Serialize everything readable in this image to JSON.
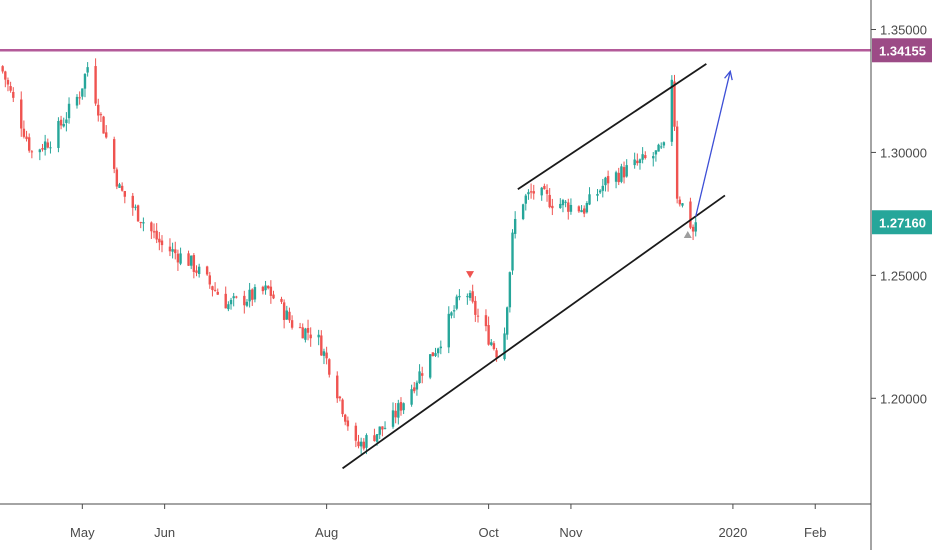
{
  "chart_data": {
    "type": "candlestick",
    "title": "",
    "xlabel": "",
    "ylabel": "",
    "ylim": [
      1.157,
      1.362
    ],
    "x_range": [
      "2019-03-31",
      "2020-02-22"
    ],
    "grid": false,
    "legend": "none",
    "x_ticks": [
      {
        "date": "2019-05-01",
        "label": "May"
      },
      {
        "date": "2019-06-01",
        "label": "Jun"
      },
      {
        "date": "2019-08-01",
        "label": "Aug"
      },
      {
        "date": "2019-10-01",
        "label": "Oct"
      },
      {
        "date": "2019-11-01",
        "label": "Nov"
      },
      {
        "date": "2020-01-01",
        "label": "2020"
      },
      {
        "date": "2020-02-01",
        "label": "Feb"
      }
    ],
    "y_ticks": [
      {
        "value": 1.35,
        "label": "1.35000"
      },
      {
        "value": 1.3,
        "label": "1.30000"
      },
      {
        "value": 1.25,
        "label": "1.25000"
      },
      {
        "value": 1.2,
        "label": "1.20000"
      }
    ],
    "price_labels": [
      {
        "value": 1.34155,
        "label": "1.34155",
        "color": "#9c4b86"
      },
      {
        "value": 1.2716,
        "label": "1.27160",
        "color": "#26a69a"
      }
    ],
    "horizontal_line": {
      "value": 1.34155,
      "color": "#b35a99"
    },
    "channel_lines": [
      {
        "start": {
          "date": "2019-08-07",
          "value": 1.1715
        },
        "end": {
          "date": "2019-12-29",
          "value": 1.2825
        }
      },
      {
        "start": {
          "date": "2019-10-12",
          "value": 1.285
        },
        "end": {
          "date": "2019-12-22",
          "value": 1.336
        }
      }
    ],
    "arrow": {
      "start": {
        "date": "2019-12-18",
        "value": 1.274
      },
      "end": {
        "date": "2019-12-31",
        "value": 1.333
      },
      "color": "#3d4fd6"
    },
    "markers": [
      {
        "type": "down-triangle",
        "date": "2019-09-24",
        "value": 1.2505,
        "color": "#ef5350"
      },
      {
        "type": "up-triangle",
        "date": "2019-12-15",
        "value": 1.2668,
        "color": "#9e9e9e"
      }
    ],
    "colors": {
      "up": "#26a69a",
      "down": "#ef5350"
    },
    "series": [
      {
        "anchor_dates": [
          "2019-04-01",
          "2019-04-12",
          "2019-04-20",
          "2019-04-30",
          "2019-05-03",
          "2019-05-15",
          "2019-05-31",
          "2019-06-10",
          "2019-06-25",
          "2019-07-10",
          "2019-07-20",
          "2019-07-28",
          "2019-08-02",
          "2019-08-12",
          "2019-08-25",
          "2019-09-05",
          "2019-09-12",
          "2019-09-22",
          "2019-09-25",
          "2019-10-06",
          "2019-10-10",
          "2019-10-12",
          "2019-10-18",
          "2019-10-25",
          "2019-11-06",
          "2019-11-15",
          "2019-12-01",
          "2019-12-06",
          "2019-12-09",
          "2019-12-10",
          "2019-12-11",
          "2019-12-15",
          "2019-12-17",
          "2019-12-18"
        ],
        "anchor_closes": [
          1.333,
          1.3,
          1.306,
          1.324,
          1.335,
          1.285,
          1.262,
          1.256,
          1.238,
          1.244,
          1.229,
          1.226,
          1.213,
          1.18,
          1.19,
          1.21,
          1.222,
          1.245,
          1.237,
          1.215,
          1.265,
          1.279,
          1.284,
          1.28,
          1.277,
          1.289,
          1.298,
          1.301,
          1.331,
          1.312,
          1.283,
          1.274,
          1.268,
          1.2716
        ]
      }
    ]
  }
}
